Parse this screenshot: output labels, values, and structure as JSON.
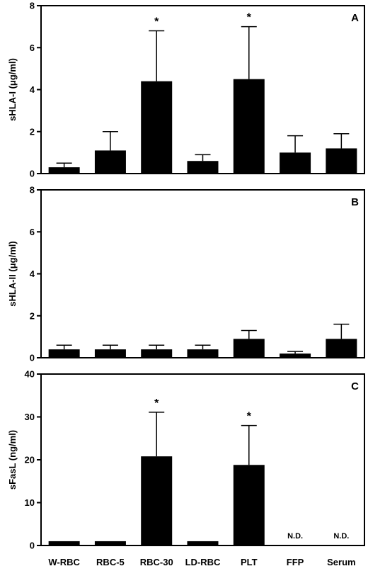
{
  "chart_data": [
    {
      "type": "bar",
      "panel_label": "A",
      "ylabel": "sHLA-I (μg/ml)",
      "ylim": [
        0,
        8
      ],
      "yticks": [
        0,
        2,
        4,
        6,
        8
      ],
      "categories": [
        "W-RBC",
        "RBC-5",
        "RBC-30",
        "LD-RBC",
        "PLT",
        "FFP",
        "Serum"
      ],
      "values": [
        0.3,
        1.1,
        4.4,
        0.6,
        4.5,
        1.0,
        1.2
      ],
      "errors": [
        0.2,
        0.9,
        2.4,
        0.3,
        2.5,
        0.8,
        0.7
      ],
      "annotations": [
        "",
        "",
        "*",
        "",
        "*",
        "",
        ""
      ]
    },
    {
      "type": "bar",
      "panel_label": "B",
      "ylabel": "sHLA-II (μg/ml)",
      "ylim": [
        0,
        8
      ],
      "yticks": [
        0,
        2,
        4,
        6,
        8
      ],
      "categories": [
        "W-RBC",
        "RBC-5",
        "RBC-30",
        "LD-RBC",
        "PLT",
        "FFP",
        "Serum"
      ],
      "values": [
        0.4,
        0.4,
        0.4,
        0.4,
        0.9,
        0.2,
        0.9
      ],
      "errors": [
        0.2,
        0.2,
        0.2,
        0.2,
        0.4,
        0.1,
        0.7
      ],
      "annotations": [
        "",
        "",
        "",
        "",
        "",
        "",
        ""
      ]
    },
    {
      "type": "bar",
      "panel_label": "C",
      "ylabel": "sFasL (ng/ml)",
      "ylim": [
        0,
        40
      ],
      "yticks": [
        0,
        10,
        20,
        30,
        40
      ],
      "categories": [
        "W-RBC",
        "RBC-5",
        "RBC-30",
        "LD-RBC",
        "PLT",
        "FFP",
        "Serum"
      ],
      "values": [
        1.0,
        1.0,
        20.8,
        1.0,
        18.8,
        null,
        null
      ],
      "errors": [
        0,
        0,
        10.3,
        0,
        9.2,
        null,
        null
      ],
      "annotations": [
        "",
        "",
        "*",
        "",
        "*",
        "N.D.",
        "N.D."
      ]
    }
  ]
}
